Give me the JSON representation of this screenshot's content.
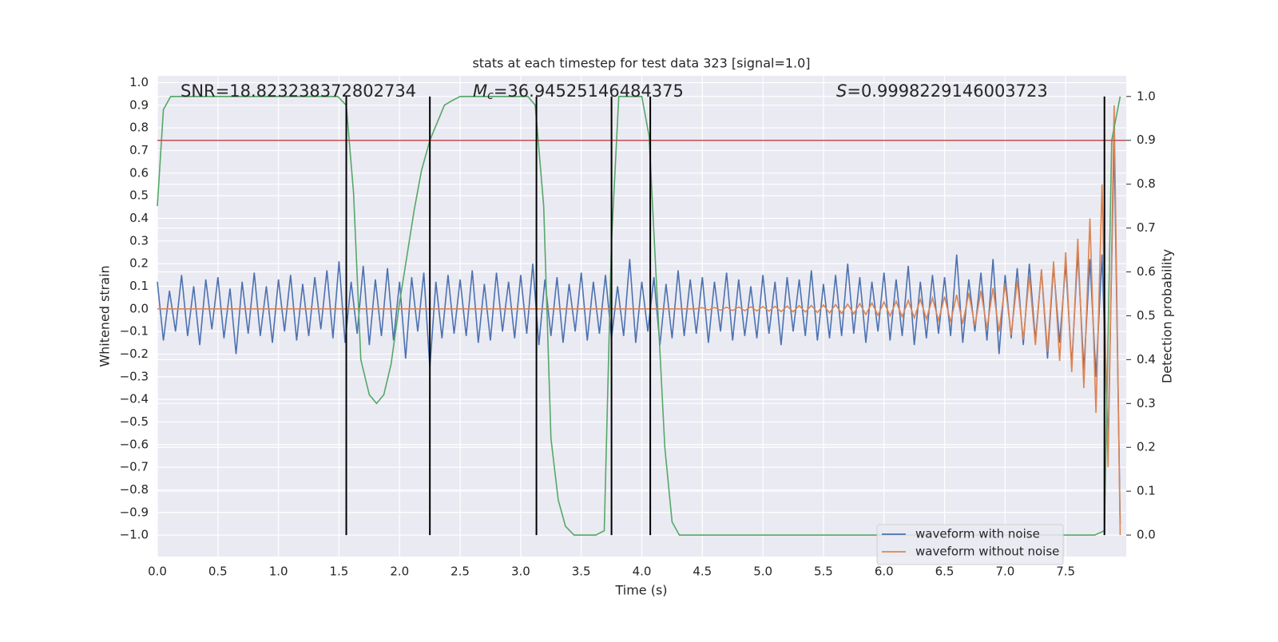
{
  "chart_data": {
    "type": "line",
    "title": "stats at each timestep for test data 323 [signal=1.0]",
    "xlabel": "Time (s)",
    "ylabel": "Whitened strain",
    "y2label": "Detection probability",
    "annotations": [
      {
        "symbol": "",
        "subscript": "",
        "text": "SNR=18.823238372802734"
      },
      {
        "symbol": "M",
        "subscript": "c",
        "text": "=36.94525146484375"
      },
      {
        "symbol": "S",
        "subscript": "",
        "text": "=0.9998229146003723"
      }
    ],
    "xlim": [
      0,
      8.0
    ],
    "ylim": [
      -1.095,
      1.03
    ],
    "y2lim": [
      -0.049,
      1.047
    ],
    "xticks": [
      {
        "value": 0,
        "label": "0.0"
      },
      0.5,
      {
        "value": 1,
        "label": "1.0"
      },
      1.5,
      {
        "value": 2,
        "label": "2.0"
      },
      2.5,
      {
        "value": 3,
        "label": "3.0"
      },
      3.5,
      {
        "value": 4,
        "label": "4.0"
      },
      4.5,
      {
        "value": 5,
        "label": "5.0"
      },
      5.5,
      {
        "value": 6,
        "label": "6.0"
      },
      6.5,
      {
        "value": 7,
        "label": "7.0"
      },
      7.5
    ],
    "yticks": [
      {
        "value": -1,
        "label": "−1.0"
      },
      {
        "value": -0.9,
        "label": "−0.9"
      },
      {
        "value": -0.8,
        "label": "−0.8"
      },
      {
        "value": -0.7,
        "label": "−0.7"
      },
      {
        "value": -0.6,
        "label": "−0.6"
      },
      {
        "value": -0.5,
        "label": "−0.5"
      },
      {
        "value": -0.4,
        "label": "−0.4"
      },
      {
        "value": -0.3,
        "label": "−0.3"
      },
      {
        "value": -0.2,
        "label": "−0.2"
      },
      {
        "value": -0.1,
        "label": "−0.1"
      },
      {
        "value": 0,
        "label": "0.0"
      },
      0.1,
      0.2,
      0.3,
      0.4,
      0.5,
      0.6,
      0.7,
      0.8,
      0.9,
      {
        "value": 1,
        "label": "1.0"
      }
    ],
    "y2ticks": [
      {
        "value": 0,
        "label": "0.0"
      },
      0.1,
      0.2,
      0.3,
      0.4,
      0.5,
      0.6,
      0.7,
      0.8,
      0.9,
      {
        "value": 1,
        "label": "1.0"
      }
    ],
    "grid": true,
    "legend": "lower right",
    "x": [
      0,
      0.05,
      0.1,
      0.15,
      0.2,
      0.25,
      0.3,
      0.35,
      0.4,
      0.45,
      0.5,
      0.55,
      0.6,
      0.65,
      0.7,
      0.75,
      0.8,
      0.85,
      0.9,
      0.95,
      1,
      1.05,
      1.1,
      1.15,
      1.2,
      1.25,
      1.3,
      1.35,
      1.4,
      1.45,
      1.5,
      1.55,
      1.6,
      1.65,
      1.7,
      1.75,
      1.8,
      1.85,
      1.9,
      1.95,
      2,
      2.05,
      2.1,
      2.15,
      2.2,
      2.25,
      2.3,
      2.35,
      2.4,
      2.45,
      2.5,
      2.55,
      2.6,
      2.65,
      2.7,
      2.75,
      2.8,
      2.85,
      2.9,
      2.95,
      3,
      3.05,
      3.1,
      3.15,
      3.2,
      3.25,
      3.3,
      3.35,
      3.4,
      3.45,
      3.5,
      3.55,
      3.6,
      3.65,
      3.7,
      3.75,
      3.8,
      3.85,
      3.9,
      3.95,
      4,
      4.05,
      4.1,
      4.15,
      4.2,
      4.25,
      4.3,
      4.35,
      4.4,
      4.45,
      4.5,
      4.55,
      4.6,
      4.65,
      4.7,
      4.75,
      4.8,
      4.85,
      4.9,
      4.95,
      5,
      5.05,
      5.1,
      5.15,
      5.2,
      5.25,
      5.3,
      5.35,
      5.4,
      5.45,
      5.5,
      5.55,
      5.6,
      5.65,
      5.7,
      5.75,
      5.8,
      5.85,
      5.9,
      5.95,
      6,
      6.05,
      6.1,
      6.15,
      6.2,
      6.25,
      6.3,
      6.35,
      6.4,
      6.45,
      6.5,
      6.55,
      6.6,
      6.65,
      6.7,
      6.75,
      6.8,
      6.85,
      6.9,
      6.95,
      7,
      7.05,
      7.1,
      7.15,
      7.2,
      7.25,
      7.3,
      7.35,
      7.4,
      7.45,
      7.5,
      7.55,
      7.6,
      7.65,
      7.7,
      7.75,
      7.8,
      7.85,
      7.9,
      7.95
    ],
    "series": [
      {
        "name": "waveform with noise",
        "color": "#4c72b0",
        "values": [
          0.12,
          -0.14,
          0.08,
          -0.1,
          0.15,
          -0.12,
          0.1,
          -0.16,
          0.13,
          -0.09,
          0.14,
          -0.13,
          0.09,
          -0.2,
          0.12,
          -0.11,
          0.16,
          -0.12,
          0.1,
          -0.15,
          0.13,
          -0.1,
          0.15,
          -0.14,
          0.11,
          -0.12,
          0.14,
          -0.09,
          0.17,
          -0.13,
          0.21,
          -0.15,
          0.12,
          -0.11,
          0.19,
          -0.16,
          0.13,
          -0.12,
          0.18,
          -0.14,
          0.12,
          -0.22,
          0.14,
          -0.1,
          0.16,
          -0.26,
          0.12,
          -0.13,
          0.15,
          -0.11,
          0.13,
          -0.12,
          0.17,
          -0.15,
          0.11,
          -0.14,
          0.16,
          -0.1,
          0.12,
          -0.13,
          0.15,
          -0.11,
          0.2,
          -0.16,
          0.13,
          -0.12,
          0.14,
          -0.15,
          0.11,
          -0.1,
          0.16,
          -0.14,
          0.12,
          -0.11,
          0.15,
          -0.13,
          0.1,
          -0.12,
          0.22,
          -0.15,
          0.12,
          -0.1,
          0.14,
          -0.16,
          0.11,
          -0.13,
          0.17,
          -0.12,
          0.13,
          -0.11,
          0.14,
          -0.15,
          0.12,
          -0.1,
          0.16,
          -0.14,
          0.13,
          -0.12,
          0.1,
          -0.13,
          0.15,
          -0.11,
          0.12,
          -0.16,
          0.14,
          -0.1,
          0.13,
          -0.12,
          0.17,
          -0.14,
          0.11,
          -0.13,
          0.15,
          -0.12,
          0.2,
          -0.11,
          0.14,
          -0.15,
          0.12,
          -0.1,
          0.16,
          -0.14,
          0.13,
          -0.12,
          0.19,
          -0.16,
          0.12,
          -0.13,
          0.15,
          -0.11,
          0.14,
          -0.12,
          0.24,
          -0.15,
          0.13,
          -0.1,
          0.16,
          -0.14,
          0.22,
          -0.2,
          0.15,
          -0.13,
          0.18,
          -0.16,
          0.2,
          -0.14,
          0.17,
          -0.22,
          0.19,
          -0.15,
          0.2,
          -0.25,
          0.25,
          -0.27,
          0.22,
          -0.3,
          0.24,
          -0.6,
          0.75,
          -0.95
        ]
      },
      {
        "name": "waveform without noise",
        "color": "#dd8452",
        "values": [
          0,
          0,
          0,
          0,
          0,
          0,
          0,
          0,
          0,
          0,
          0,
          0,
          0,
          0,
          0,
          0,
          0,
          0,
          0,
          0,
          0,
          0,
          0,
          0,
          0,
          0,
          0,
          0,
          0,
          0,
          0,
          0,
          0,
          0,
          0,
          0,
          0,
          0,
          0,
          0,
          0,
          0,
          0,
          0,
          0,
          0,
          0,
          0,
          0,
          0,
          0,
          0,
          0,
          0,
          0,
          0,
          0,
          0,
          0,
          0,
          0,
          0,
          0,
          0,
          0,
          0,
          0,
          0,
          0,
          0,
          0,
          0,
          0,
          0,
          0,
          0,
          0,
          0,
          0,
          0,
          0,
          0,
          0,
          0,
          0,
          0,
          0,
          0,
          0,
          0,
          0.005,
          -0.005,
          0.006,
          -0.006,
          0.007,
          -0.007,
          0.008,
          -0.008,
          0.009,
          -0.009,
          0.01,
          -0.01,
          0.011,
          -0.012,
          0.012,
          -0.013,
          0.014,
          -0.014,
          0.015,
          -0.016,
          0.017,
          -0.018,
          0.019,
          -0.02,
          0.021,
          -0.022,
          0.023,
          -0.025,
          0.026,
          -0.028,
          0.03,
          -0.031,
          0.033,
          -0.035,
          0.037,
          -0.04,
          0.042,
          -0.045,
          0.048,
          -0.051,
          0.054,
          -0.058,
          0.062,
          -0.066,
          0.07,
          -0.075,
          0.08,
          -0.086,
          0.092,
          -0.1,
          0.108,
          -0.116,
          0.126,
          -0.136,
          0.148,
          -0.16,
          0.175,
          -0.19,
          0.21,
          -0.23,
          0.25,
          -0.28,
          0.31,
          -0.35,
          0.4,
          -0.46,
          0.55,
          -0.7,
          0.9,
          -1.0
        ]
      },
      {
        "color": "#55a868",
        "axis": "y2",
        "x": [
          0,
          0.05,
          0.11,
          1.49,
          1.56,
          1.62,
          1.68,
          1.75,
          1.81,
          1.87,
          1.93,
          2.0,
          2.12,
          2.18,
          2.25,
          2.31,
          2.37,
          2.43,
          2.5,
          3.06,
          3.12,
          3.19,
          3.25,
          3.31,
          3.37,
          3.44,
          3.62,
          3.69,
          3.75,
          3.81,
          4.0,
          4.06,
          4.12,
          4.19,
          4.25,
          4.31,
          7.74,
          7.82,
          7.88,
          7.95
        ],
        "values": [
          0.75,
          0.97,
          1.0,
          1.0,
          0.98,
          0.78,
          0.4,
          0.32,
          0.3,
          0.32,
          0.39,
          0.53,
          0.74,
          0.83,
          0.9,
          0.94,
          0.98,
          0.99,
          1.0,
          1.0,
          0.98,
          0.75,
          0.22,
          0.08,
          0.02,
          0.0,
          0.0,
          0.01,
          0.67,
          1.0,
          1.0,
          0.91,
          0.58,
          0.2,
          0.03,
          0.0,
          0.0,
          0.01,
          0.9,
          1.0
        ]
      }
    ],
    "threshold": 0.9,
    "threshold_color": "#c44e52",
    "vlines": [
      1.56,
      2.25,
      3.13,
      3.75,
      4.07,
      7.82
    ],
    "vline_color": "#000000"
  }
}
